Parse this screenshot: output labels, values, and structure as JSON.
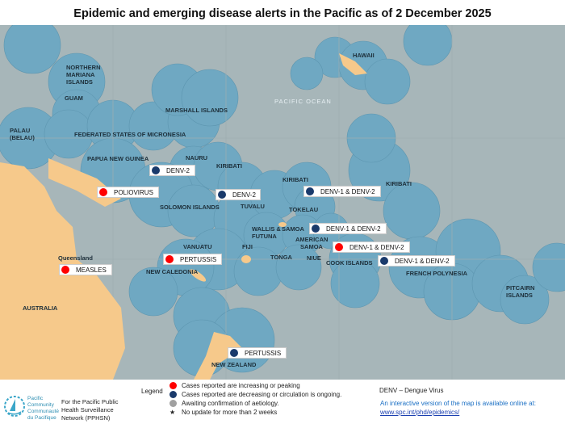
{
  "title": "Epidemic and emerging disease alerts in the Pacific as of 2 December 2025",
  "colors": {
    "increasing": "#ff0000",
    "decreasing": "#1a3a6b",
    "awaiting": "#a0a0a0",
    "sea": "#a7b6b9",
    "eez": "#6fa8c2",
    "land": "#f6c98b",
    "link": "#1a5fb4"
  },
  "places": [
    "HAWAII",
    "NORTHERN MARIANA ISLANDS",
    "GUAM",
    "PACIFIC OCEAN",
    "MARSHALL ISLANDS",
    "PALAU (BELAU)",
    "FEDERATED STATES OF MICRONESIA",
    "NAURU",
    "KIRIBATI",
    "PAPUA NEW GUINEA",
    "KIRIBATI",
    "KIRIBATI",
    "SOLOMON ISLANDS",
    "TUVALU",
    "TOKELAU",
    "WALLIS & FUTUNA",
    "SAMOA",
    "AMERICAN SAMOA",
    "VANUATU",
    "FIJI",
    "TONGA",
    "NIUE",
    "COOK ISLANDS",
    "FRENCH POLYNESIA",
    "Queensland",
    "NEW CALEDONIA",
    "PITCAIRN ISLANDS",
    "AUSTRALIA",
    "NEW ZEALAND"
  ],
  "alerts": [
    {
      "label": "DENV-2",
      "status": "decreasing"
    },
    {
      "label": "POLIOVIRUS",
      "status": "increasing"
    },
    {
      "label": "DENV-2",
      "status": "decreasing"
    },
    {
      "label": "DENV-1 & DENV-2",
      "status": "decreasing"
    },
    {
      "label": "DENV-1 & DENV-2",
      "status": "decreasing"
    },
    {
      "label": "DENV-1 & DENV-2",
      "status": "increasing"
    },
    {
      "label": "DENV-1 & DENV-2",
      "status": "decreasing"
    },
    {
      "label": "MEASLES",
      "status": "increasing"
    },
    {
      "label": "PERTUSSIS",
      "status": "increasing"
    },
    {
      "label": "PERTUSSIS",
      "status": "decreasing"
    }
  ],
  "footer": {
    "org_en": "Pacific Community",
    "org_fr": "Communauté du Pacifique",
    "network": "For the Pacific Public Health Surveillance Network (PPHSN)",
    "legend_title": "Legend",
    "legend": [
      "Cases reported are increasing or peaking",
      "Cases reported are decreasing or circulation is ongoing.",
      "Awaiting confirmation of aetiology.",
      "No update for more than 2 weeks"
    ],
    "abbrev": "DENV – Dengue Virus",
    "online_text": "An interactive version of the map is available online at:",
    "link": "www.spc.int/phd/epidemics/"
  }
}
